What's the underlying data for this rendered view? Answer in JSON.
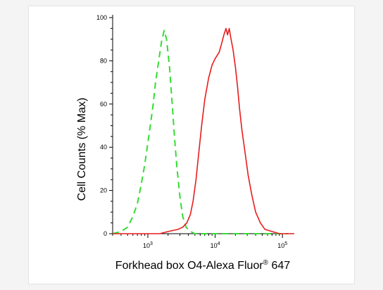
{
  "chart_data": {
    "type": "line",
    "xscale": "log",
    "xlim": [
      300,
      150000
    ],
    "ylim": [
      0,
      100
    ],
    "xlabel_main": "Forkhead box O4-Alexa Fluor",
    "xlabel_sup": "®",
    "xlabel_tail": " 647",
    "ylabel": "Cell Counts (% Max)",
    "yticks": [
      0,
      20,
      40,
      60,
      80,
      100
    ],
    "xtick_labels": [
      {
        "value": 1000,
        "base": "10",
        "exp": "3"
      },
      {
        "value": 10000,
        "base": "10",
        "exp": "4"
      },
      {
        "value": 100000,
        "base": "10",
        "exp": "5"
      }
    ],
    "series": [
      {
        "color": "#33dd33",
        "dash": "9,6",
        "points": [
          [
            300,
            0
          ],
          [
            400,
            1
          ],
          [
            500,
            3
          ],
          [
            600,
            8
          ],
          [
            700,
            14
          ],
          [
            800,
            23
          ],
          [
            900,
            32
          ],
          [
            1000,
            42
          ],
          [
            1100,
            51
          ],
          [
            1200,
            60
          ],
          [
            1300,
            70
          ],
          [
            1450,
            80
          ],
          [
            1600,
            89
          ],
          [
            1750,
            94
          ],
          [
            1900,
            90
          ],
          [
            2100,
            77
          ],
          [
            2300,
            60
          ],
          [
            2500,
            44
          ],
          [
            2700,
            31
          ],
          [
            3000,
            17
          ],
          [
            3300,
            8
          ],
          [
            3700,
            3
          ],
          [
            4300,
            1
          ],
          [
            5000,
            0
          ],
          [
            20000,
            0
          ],
          [
            120000,
            0
          ]
        ]
      },
      {
        "color": "#e81c1c",
        "dash": "",
        "points": [
          [
            300,
            0
          ],
          [
            1000,
            0
          ],
          [
            1500,
            0
          ],
          [
            2000,
            1
          ],
          [
            2800,
            2
          ],
          [
            3300,
            3
          ],
          [
            3800,
            5
          ],
          [
            4300,
            9
          ],
          [
            4700,
            15
          ],
          [
            5200,
            25
          ],
          [
            5700,
            37
          ],
          [
            6300,
            50
          ],
          [
            7000,
            62
          ],
          [
            8000,
            72
          ],
          [
            9000,
            78
          ],
          [
            10000,
            81
          ],
          [
            11500,
            84
          ],
          [
            12500,
            88
          ],
          [
            13500,
            92
          ],
          [
            14500,
            95
          ],
          [
            15300,
            92
          ],
          [
            16200,
            95
          ],
          [
            17000,
            91
          ],
          [
            18500,
            85
          ],
          [
            20000,
            77
          ],
          [
            21500,
            68
          ],
          [
            23000,
            58
          ],
          [
            25000,
            48
          ],
          [
            28000,
            37
          ],
          [
            31000,
            27
          ],
          [
            35000,
            18
          ],
          [
            40000,
            10
          ],
          [
            47000,
            5
          ],
          [
            55000,
            2
          ],
          [
            70000,
            1
          ],
          [
            90000,
            0
          ],
          [
            150000,
            0
          ]
        ]
      }
    ]
  }
}
